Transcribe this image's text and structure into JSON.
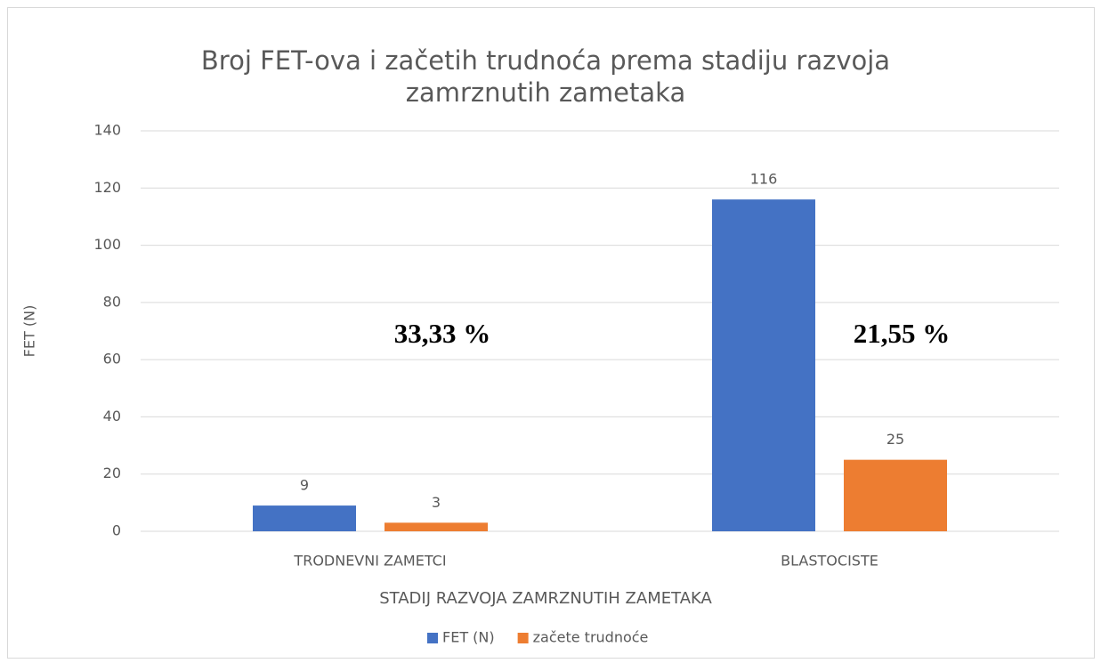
{
  "chart_data": {
    "type": "bar",
    "title": [
      "Broj FET-ova i začetih trudnoća prema stadiju razvoja",
      "zamrznutih zametaka"
    ],
    "x_label": "STADIJ RAZVOJA ZAMRZNUTIH ZAMETAKA",
    "y_label": "FET (N)",
    "categories": [
      "TRODNEVNI ZAMETCI",
      "BLASTOCISTE"
    ],
    "series": [
      {
        "name": "FET (N)",
        "color": "#4472c4",
        "values": [
          9,
          116
        ]
      },
      {
        "name": "začete trudnoće",
        "color": "#ed7d31",
        "values": [
          3,
          25
        ]
      }
    ],
    "annotations": [
      "33,33 %",
      "21,55 %"
    ],
    "ylim": [
      0,
      140
    ],
    "yticks": [
      0,
      20,
      40,
      60,
      80,
      100,
      120,
      140
    ],
    "grid": true,
    "legend": "bottom",
    "data_labels": true
  }
}
